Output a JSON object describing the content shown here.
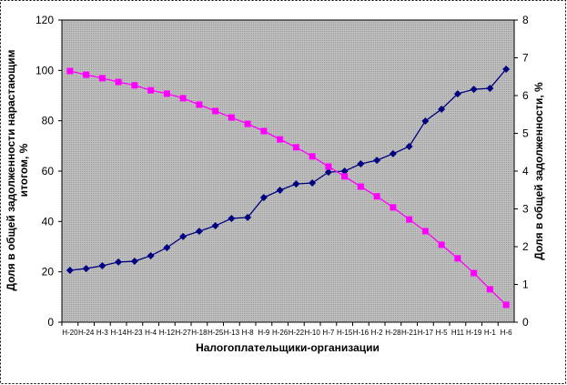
{
  "chart_data": {
    "type": "line",
    "x_label": "Налогоплательщики-организации",
    "y_label": "Доля в общей задолженности нарастающим итогом, %",
    "y2_label": "Доля в общей задолженности, %",
    "categories": [
      "Н-20",
      "Н-24",
      "Н-3",
      "Н-14",
      "Н-23",
      "Н-4",
      "Н-12",
      "Н-27",
      "Н-18",
      "Н-25",
      "Н-13",
      "Н-8",
      "Н-9",
      "Н-26",
      "Н-22",
      "Н-10",
      "Н-7",
      "Н-15",
      "Н-16",
      "Н-2",
      "Н-28",
      "Н-21",
      "Н-17",
      "Н-5",
      "Н11",
      "Н-19",
      "Н-1",
      "Н-6"
    ],
    "series": [
      {
        "color": "#000080",
        "marker": "diamond",
        "values": [
          20.6,
          21.3,
          22.4,
          23.9,
          24.2,
          26.4,
          29.6,
          34.0,
          36.1,
          38.3,
          41.2,
          41.6,
          49.5,
          52.4,
          54.9,
          55.3,
          59.6,
          60.0,
          62.9,
          64.3,
          66.9,
          69.8,
          79.9,
          84.6,
          90.7,
          92.5,
          92.9,
          100.5
        ]
      },
      {
        "color": "#ff00ff",
        "marker": "square",
        "axis": "y2",
        "values": [
          6.65,
          6.55,
          6.46,
          6.36,
          6.27,
          6.14,
          6.05,
          5.93,
          5.76,
          5.59,
          5.42,
          5.25,
          5.06,
          4.84,
          4.63,
          4.39,
          4.12,
          3.86,
          3.59,
          3.33,
          3.04,
          2.72,
          2.41,
          2.05,
          1.69,
          1.3,
          0.87,
          0.46
        ]
      }
    ],
    "ylim": [
      0,
      120
    ],
    "yticks": [
      0,
      20,
      40,
      60,
      80,
      100,
      120
    ],
    "y2lim": [
      0,
      8
    ],
    "y2ticks": [
      0,
      1,
      2,
      3,
      4,
      5,
      6,
      7,
      8
    ],
    "plot_background": "#c0c0c0"
  }
}
